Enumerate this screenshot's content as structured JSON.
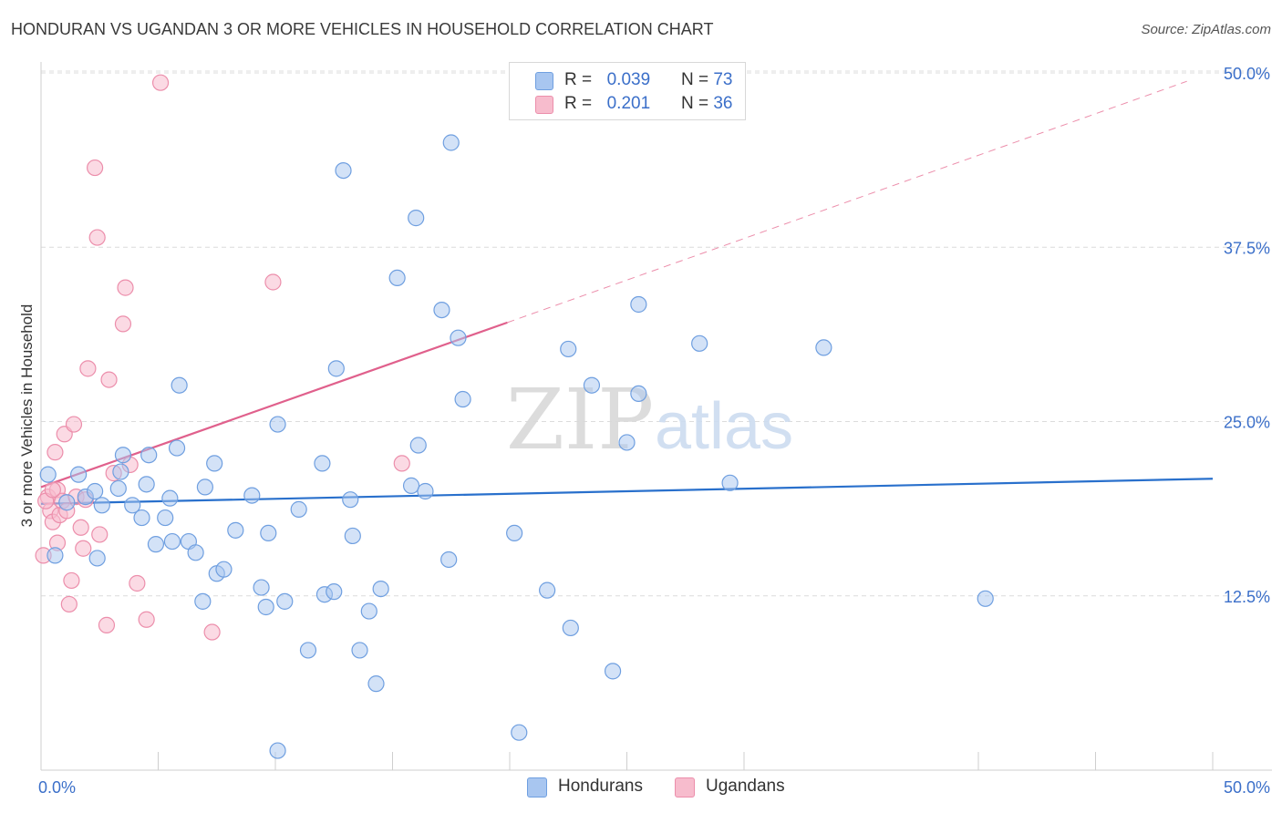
{
  "title": "HONDURAN VS UGANDAN 3 OR MORE VEHICLES IN HOUSEHOLD CORRELATION CHART",
  "source": "Source: ZipAtlas.com",
  "watermark": {
    "zip": "ZIP",
    "atlas": "atlas"
  },
  "legend_top": [
    {
      "r_label": "R =",
      "r_value": "0.039",
      "n_label": "N =",
      "n_value": "73"
    },
    {
      "r_label": "R =",
      "r_value": "0.201",
      "n_label": "N =",
      "n_value": "36"
    }
  ],
  "legend_bottom": [
    "Hondurans",
    "Ugandans"
  ],
  "colors": {
    "blue_fill": "#a8c6f0",
    "blue_stroke": "#6f9fe0",
    "blue_line": "#2970cc",
    "pink_fill": "#f7bccd",
    "pink_stroke": "#ec8eab",
    "pink_line": "#e0608c",
    "axis_text": "#3b6fc9",
    "grid": "#dcdcdc"
  },
  "chart_data": {
    "type": "scatter",
    "title": "HONDURAN VS UGANDAN 3 OR MORE VEHICLES IN HOUSEHOLD CORRELATION CHART",
    "xlabel": "",
    "ylabel": "3 or more Vehicles in Household",
    "xlim": [
      0,
      50
    ],
    "ylim": [
      0,
      50
    ],
    "x_tick_labels": [
      {
        "v": 0,
        "label": "0.0%"
      },
      {
        "v": 50,
        "label": "50.0%"
      }
    ],
    "y_tick_labels": [
      {
        "v": 12.5,
        "label": "12.5%"
      },
      {
        "v": 25,
        "label": "25.0%"
      },
      {
        "v": 37.5,
        "label": "37.5%"
      },
      {
        "v": 50,
        "label": "50.0%"
      }
    ],
    "x_minor_ticks": [
      0,
      5,
      10,
      15,
      20,
      25,
      30,
      40,
      45,
      50
    ],
    "series": [
      {
        "name": "Hondurans",
        "R": 0.039,
        "N": 73,
        "trend": {
          "x": [
            0,
            50
          ],
          "y": [
            19.1,
            20.9
          ]
        },
        "points": [
          [
            0.3,
            21.2
          ],
          [
            0.6,
            15.4
          ],
          [
            1.1,
            19.2
          ],
          [
            1.6,
            21.2
          ],
          [
            1.9,
            19.6
          ],
          [
            2.3,
            20.0
          ],
          [
            2.4,
            15.2
          ],
          [
            2.6,
            19.0
          ],
          [
            3.3,
            20.2
          ],
          [
            3.4,
            21.4
          ],
          [
            3.5,
            22.6
          ],
          [
            3.9,
            19.0
          ],
          [
            4.3,
            18.1
          ],
          [
            4.5,
            20.5
          ],
          [
            4.6,
            22.6
          ],
          [
            4.9,
            16.2
          ],
          [
            5.3,
            18.1
          ],
          [
            5.5,
            19.5
          ],
          [
            5.6,
            16.4
          ],
          [
            5.8,
            23.1
          ],
          [
            5.9,
            27.6
          ],
          [
            6.3,
            16.4
          ],
          [
            6.6,
            15.6
          ],
          [
            6.9,
            12.1
          ],
          [
            7.0,
            20.3
          ],
          [
            7.4,
            22.0
          ],
          [
            7.5,
            14.1
          ],
          [
            7.8,
            14.4
          ],
          [
            8.3,
            17.2
          ],
          [
            9.0,
            19.7
          ],
          [
            9.4,
            13.1
          ],
          [
            9.6,
            11.7
          ],
          [
            9.7,
            17.0
          ],
          [
            10.1,
            24.8
          ],
          [
            10.4,
            12.1
          ],
          [
            11.0,
            18.7
          ],
          [
            11.4,
            8.6
          ],
          [
            12.0,
            22.0
          ],
          [
            12.1,
            12.6
          ],
          [
            12.5,
            12.8
          ],
          [
            12.6,
            28.8
          ],
          [
            12.9,
            43.0
          ],
          [
            13.2,
            19.4
          ],
          [
            13.3,
            16.8
          ],
          [
            13.6,
            8.6
          ],
          [
            14.0,
            11.4
          ],
          [
            14.3,
            6.2
          ],
          [
            14.5,
            13.0
          ],
          [
            15.2,
            35.3
          ],
          [
            15.8,
            20.4
          ],
          [
            16.0,
            39.6
          ],
          [
            16.1,
            23.3
          ],
          [
            16.4,
            20.0
          ],
          [
            17.1,
            33.0
          ],
          [
            17.4,
            15.1
          ],
          [
            17.5,
            45.0
          ],
          [
            17.8,
            31.0
          ],
          [
            20.2,
            17.0
          ],
          [
            20.4,
            2.7
          ],
          [
            21.6,
            12.9
          ],
          [
            22.5,
            30.2
          ],
          [
            22.6,
            10.2
          ],
          [
            23.5,
            27.6
          ],
          [
            24.4,
            7.1
          ],
          [
            25.0,
            23.5
          ],
          [
            25.5,
            33.4
          ],
          [
            25.5,
            27.0
          ],
          [
            28.1,
            30.6
          ],
          [
            29.4,
            20.6
          ],
          [
            33.4,
            30.3
          ],
          [
            40.3,
            12.3
          ],
          [
            18.0,
            26.6
          ],
          [
            10.1,
            1.4
          ]
        ]
      },
      {
        "name": "Ugandans",
        "R": 0.201,
        "N": 36,
        "trend": {
          "x": [
            0,
            19.9
          ],
          "y": [
            20.3,
            32.1
          ]
        },
        "trend_extension": {
          "x": [
            19.9,
            48.9
          ],
          "y": [
            32.1,
            49.4
          ]
        },
        "points": [
          [
            0.1,
            15.4
          ],
          [
            0.3,
            19.6
          ],
          [
            0.4,
            18.6
          ],
          [
            0.5,
            17.8
          ],
          [
            0.6,
            22.8
          ],
          [
            0.7,
            16.3
          ],
          [
            0.7,
            20.1
          ],
          [
            0.8,
            18.3
          ],
          [
            0.9,
            19.3
          ],
          [
            1.1,
            18.6
          ],
          [
            1.0,
            24.1
          ],
          [
            1.2,
            11.9
          ],
          [
            1.3,
            13.6
          ],
          [
            1.4,
            24.8
          ],
          [
            1.7,
            17.4
          ],
          [
            1.8,
            15.9
          ],
          [
            2.0,
            28.8
          ],
          [
            2.3,
            43.2
          ],
          [
            2.4,
            38.2
          ],
          [
            2.5,
            16.9
          ],
          [
            2.8,
            10.4
          ],
          [
            2.9,
            28.0
          ],
          [
            3.1,
            21.3
          ],
          [
            3.5,
            32.0
          ],
          [
            3.6,
            34.6
          ],
          [
            3.8,
            21.9
          ],
          [
            4.1,
            13.4
          ],
          [
            4.5,
            10.8
          ],
          [
            5.1,
            49.3
          ],
          [
            7.3,
            9.9
          ],
          [
            9.9,
            35.0
          ],
          [
            15.4,
            22.0
          ],
          [
            0.2,
            19.3
          ],
          [
            0.5,
            20.1
          ],
          [
            1.5,
            19.6
          ],
          [
            1.9,
            19.4
          ]
        ]
      }
    ]
  }
}
